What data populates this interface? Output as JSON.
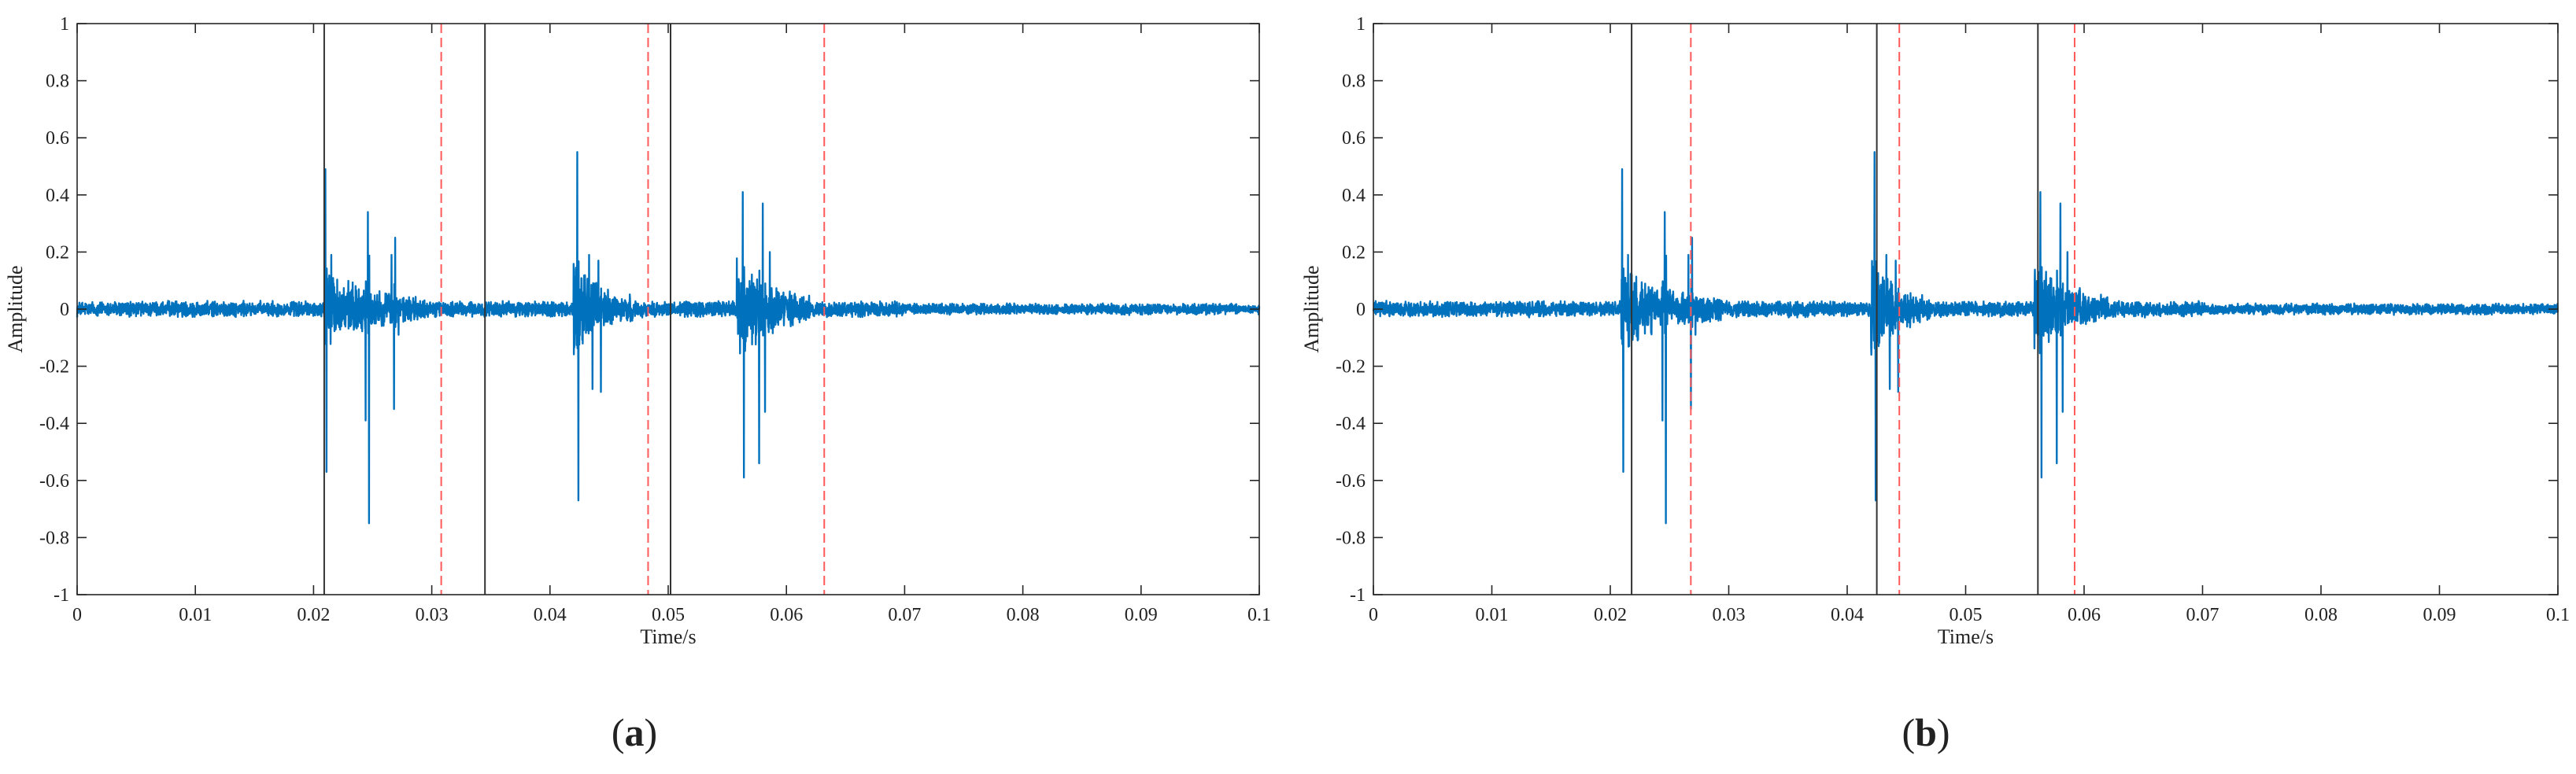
{
  "figure": {
    "panels": [
      {
        "id": "a",
        "label_open": "(",
        "label_letter": "a",
        "label_close": ")"
      },
      {
        "id": "b",
        "label_open": "(",
        "label_letter": "b",
        "label_close": ")"
      }
    ]
  },
  "chart_data": [
    {
      "type": "line",
      "panel": "a",
      "title": "",
      "xlabel": "Time/s",
      "ylabel": "Amplitude",
      "xlim": [
        0,
        0.1
      ],
      "ylim": [
        -1,
        1
      ],
      "x_ticks": [
        0,
        0.01,
        0.02,
        0.03,
        0.04,
        0.05,
        0.06,
        0.07,
        0.08,
        0.09,
        0.1
      ],
      "x_tick_labels": [
        "0",
        "0.01",
        "0.02",
        "0.03",
        "0.04",
        "0.05",
        "0.06",
        "0.07",
        "0.08",
        "0.09",
        "0.1"
      ],
      "y_ticks": [
        -1,
        -0.8,
        -0.6,
        -0.4,
        -0.2,
        0,
        0.2,
        0.4,
        0.6,
        0.8,
        1
      ],
      "y_tick_labels": [
        "-1",
        "-0.8",
        "-0.6",
        "-0.4",
        "-0.2",
        "0",
        "0.2",
        "0.4",
        "0.6",
        "0.8",
        "1"
      ],
      "grid": false,
      "series_color": "#0072BD",
      "series": [
        {
          "noise_level": 0.02,
          "spikes": [
            {
              "t": 0.021,
              "peak": 0.49
            },
            {
              "t": 0.0211,
              "peak": -0.57
            },
            {
              "t": 0.0215,
              "peak": 0.19
            },
            {
              "t": 0.0244,
              "peak": -0.39
            },
            {
              "t": 0.0246,
              "peak": 0.34
            },
            {
              "t": 0.0247,
              "peak": -0.75
            },
            {
              "t": 0.0266,
              "peak": 0.19
            },
            {
              "t": 0.0268,
              "peak": -0.35
            },
            {
              "t": 0.0269,
              "peak": 0.25
            },
            {
              "t": 0.0272,
              "peak": -0.09
            },
            {
              "t": 0.0423,
              "peak": 0.55
            },
            {
              "t": 0.0424,
              "peak": -0.67
            },
            {
              "t": 0.0433,
              "peak": 0.19
            },
            {
              "t": 0.0436,
              "peak": -0.28
            },
            {
              "t": 0.0441,
              "peak": 0.17
            },
            {
              "t": 0.0443,
              "peak": -0.29
            },
            {
              "t": 0.0563,
              "peak": 0.41
            },
            {
              "t": 0.0564,
              "peak": -0.59
            },
            {
              "t": 0.0577,
              "peak": -0.54
            },
            {
              "t": 0.058,
              "peak": 0.37
            },
            {
              "t": 0.0582,
              "peak": -0.36
            },
            {
              "t": 0.0586,
              "peak": 0.2
            }
          ],
          "bursts": [
            {
              "start": 0.0209,
              "end": 0.0295,
              "amp": 0.09
            },
            {
              "start": 0.042,
              "end": 0.047,
              "amp": 0.12
            },
            {
              "start": 0.0558,
              "end": 0.062,
              "amp": 0.12
            }
          ]
        }
      ],
      "onset_markers": [
        0.0209,
        0.0345,
        0.0502
      ],
      "onset_color": "#333333",
      "end_markers": [
        0.0308,
        0.0483,
        0.0632
      ],
      "end_color": "#FF5A5A"
    },
    {
      "type": "line",
      "panel": "b",
      "title": "",
      "xlabel": "Time/s",
      "ylabel": "Amplitude",
      "xlim": [
        0,
        0.1
      ],
      "ylim": [
        -1,
        1
      ],
      "x_ticks": [
        0,
        0.01,
        0.02,
        0.03,
        0.04,
        0.05,
        0.06,
        0.07,
        0.08,
        0.09,
        0.1
      ],
      "x_tick_labels": [
        "0",
        "0.01",
        "0.02",
        "0.03",
        "0.04",
        "0.05",
        "0.06",
        "0.07",
        "0.08",
        "0.09",
        "0.1"
      ],
      "y_ticks": [
        -1,
        -0.8,
        -0.6,
        -0.4,
        -0.2,
        0,
        0.2,
        0.4,
        0.6,
        0.8,
        1
      ],
      "y_tick_labels": [
        "-1",
        "-0.8",
        "-0.6",
        "-0.4",
        "-0.2",
        "0",
        "0.2",
        "0.4",
        "0.6",
        "0.8",
        "1"
      ],
      "grid": false,
      "series_color": "#0072BD",
      "series": [
        {
          "noise_level": 0.02,
          "spikes": [
            {
              "t": 0.021,
              "peak": 0.49
            },
            {
              "t": 0.0211,
              "peak": -0.57
            },
            {
              "t": 0.0215,
              "peak": 0.19
            },
            {
              "t": 0.0244,
              "peak": -0.39
            },
            {
              "t": 0.0246,
              "peak": 0.34
            },
            {
              "t": 0.0247,
              "peak": -0.75
            },
            {
              "t": 0.0266,
              "peak": 0.19
            },
            {
              "t": 0.0268,
              "peak": -0.35
            },
            {
              "t": 0.0269,
              "peak": 0.25
            },
            {
              "t": 0.0272,
              "peak": -0.09
            },
            {
              "t": 0.0423,
              "peak": 0.55
            },
            {
              "t": 0.0424,
              "peak": -0.67
            },
            {
              "t": 0.0433,
              "peak": 0.19
            },
            {
              "t": 0.0436,
              "peak": -0.28
            },
            {
              "t": 0.0441,
              "peak": 0.17
            },
            {
              "t": 0.0443,
              "peak": -0.29
            },
            {
              "t": 0.0563,
              "peak": 0.41
            },
            {
              "t": 0.0564,
              "peak": -0.59
            },
            {
              "t": 0.0577,
              "peak": -0.54
            },
            {
              "t": 0.058,
              "peak": 0.37
            },
            {
              "t": 0.0582,
              "peak": -0.36
            },
            {
              "t": 0.0586,
              "peak": 0.2
            }
          ],
          "bursts": [
            {
              "start": 0.0209,
              "end": 0.0295,
              "amp": 0.09
            },
            {
              "start": 0.042,
              "end": 0.047,
              "amp": 0.12
            },
            {
              "start": 0.0558,
              "end": 0.062,
              "amp": 0.12
            }
          ]
        }
      ],
      "onset_markers": [
        0.0218,
        0.0425,
        0.0561
      ],
      "onset_color": "#333333",
      "end_markers": [
        0.0268,
        0.0444,
        0.0592
      ],
      "end_color": "#FF5A5A"
    }
  ]
}
